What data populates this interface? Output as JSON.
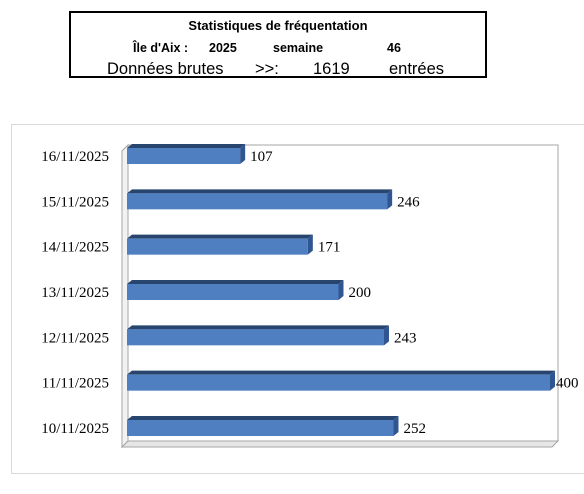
{
  "header": {
    "title": "Statistiques de  fréquentation",
    "location": "Île d'Aix :",
    "year": "2025",
    "week_label": "semaine",
    "week_number": "46",
    "raw_label": "Données brutes",
    "arrow": ">>:",
    "total": "1619",
    "unit": "entrées"
  },
  "chart_data": {
    "type": "bar",
    "orientation": "horizontal",
    "categories": [
      "10/11/2025",
      "11/11/2025",
      "12/11/2025",
      "13/11/2025",
      "14/11/2025",
      "15/11/2025",
      "16/11/2025"
    ],
    "values": [
      252,
      400,
      243,
      200,
      171,
      246,
      107
    ],
    "xlim": [
      0,
      400
    ],
    "grid": false,
    "bar_color": "#4f7fc0"
  }
}
